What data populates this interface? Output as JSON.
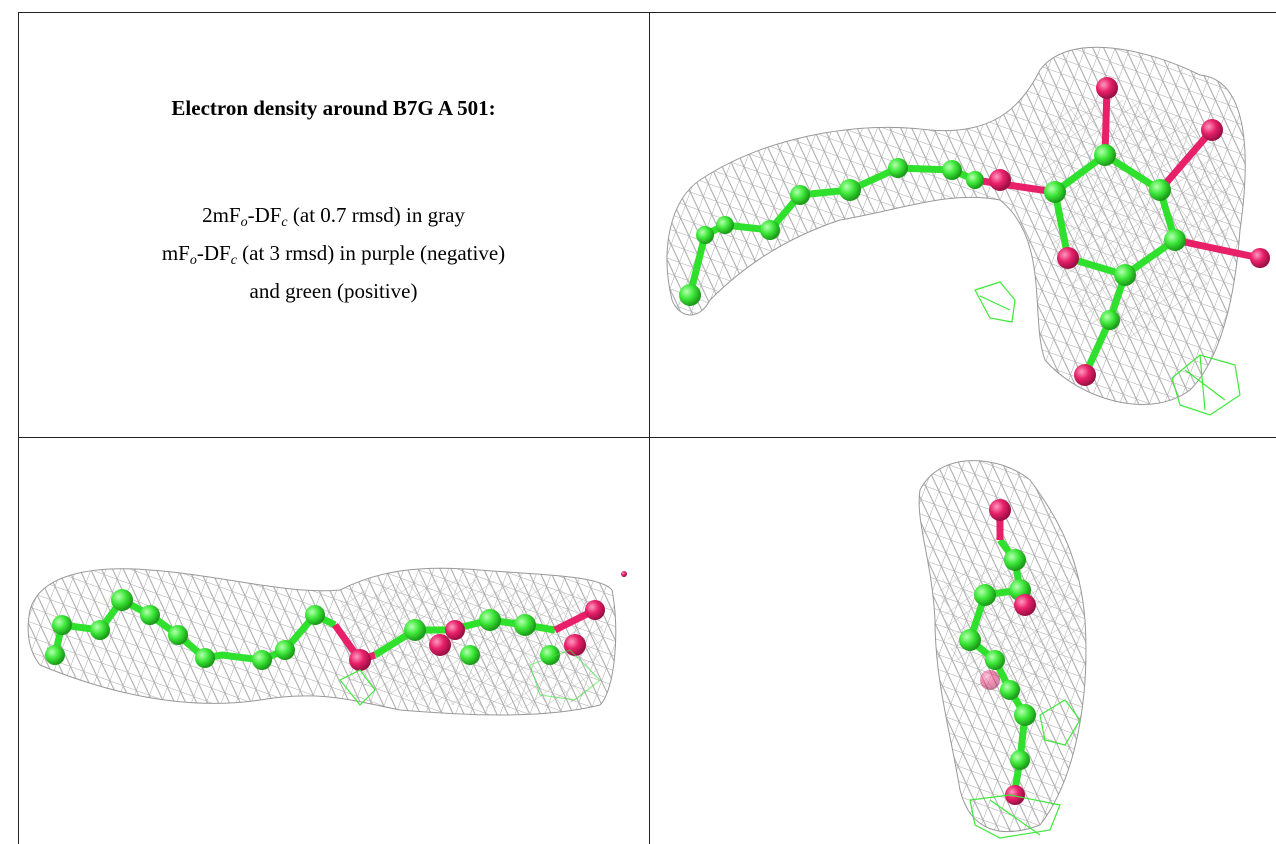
{
  "caption": {
    "title": "Electron density around B7G A 501:",
    "lines": [
      [
        "2mF",
        "o",
        "-DF",
        "c",
        " (at 0.7 rmsd) in gray"
      ],
      [
        "mF",
        "o",
        "-DF",
        "c",
        " (at 3 rmsd) in purple (negative)"
      ],
      [
        "and green (positive)"
      ]
    ]
  }
}
